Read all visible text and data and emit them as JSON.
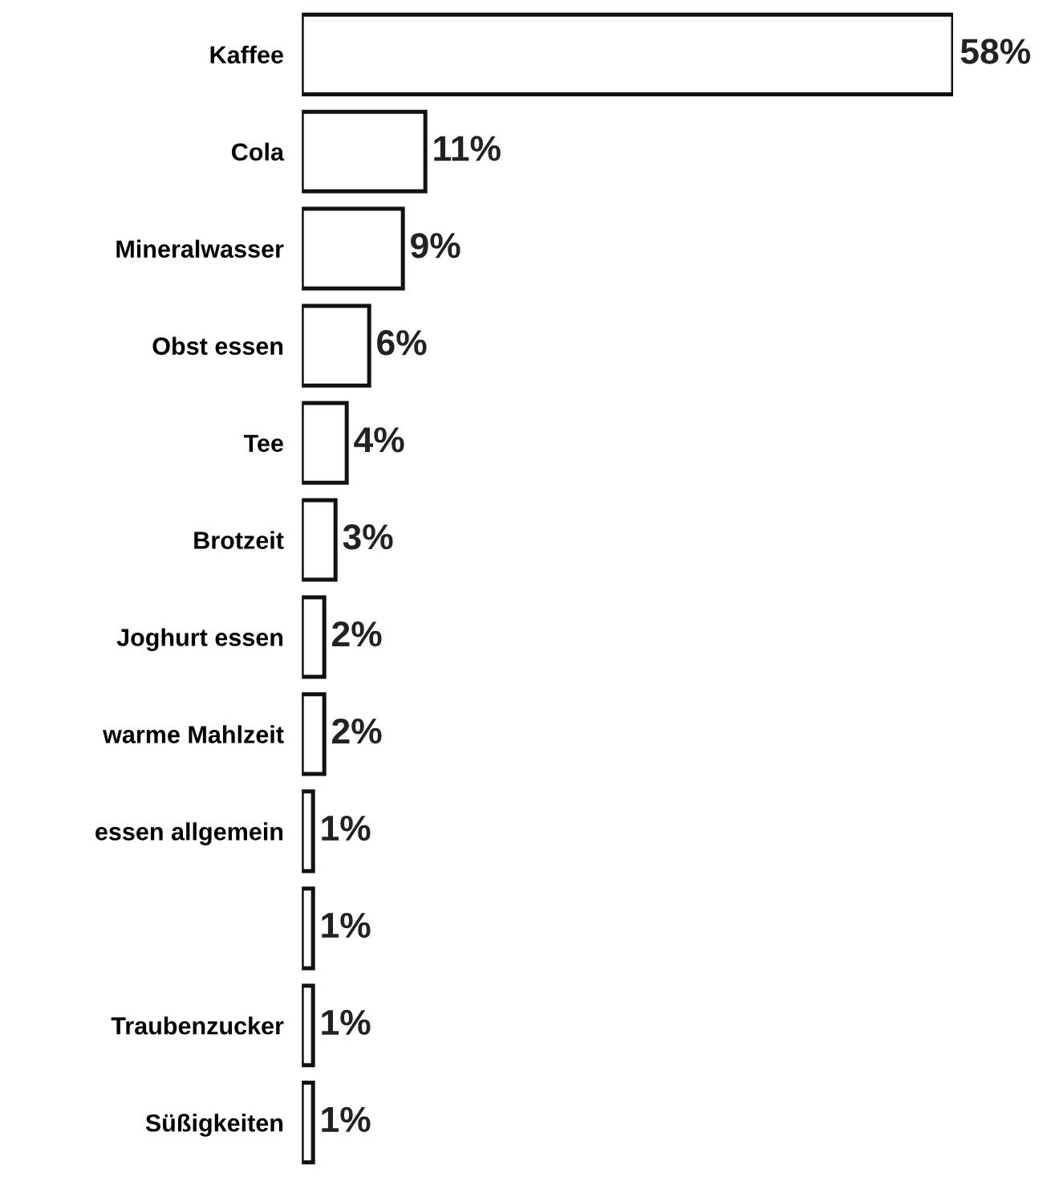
{
  "chart_data": {
    "type": "bar",
    "orientation": "horizontal",
    "categories": [
      "Kaffee",
      "Cola",
      "Mineralwasser",
      "Obst essen",
      "Tee",
      "Brotzeit",
      "Joghurt essen",
      "warme Mahlzeit",
      "essen allgemein",
      null,
      "Traubenzucker",
      "Süßigkeiten"
    ],
    "values": [
      58,
      11,
      9,
      6,
      4,
      3,
      2,
      2,
      1,
      1,
      1,
      1
    ],
    "value_labels": [
      "58%",
      "11%",
      "9%",
      "6%",
      "4%",
      "3%",
      "2%",
      "2%",
      "1%",
      "1%",
      "1%",
      "1%"
    ],
    "color": "#ffffff",
    "grid": false,
    "tick_labels": "y"
  }
}
